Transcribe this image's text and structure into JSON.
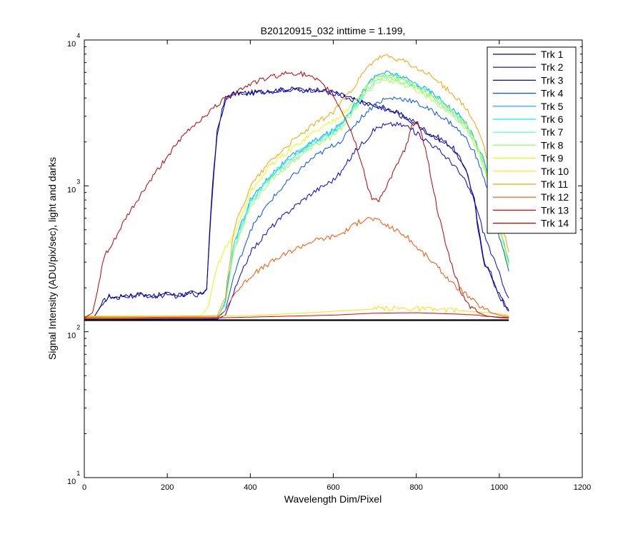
{
  "chart_data": {
    "type": "line",
    "title": "B20120915_032 inttime = 1.199,",
    "xlabel": "Wavelength Dim/Pixel",
    "ylabel": "Signal Intensity (ADU/pix/sec), light and darks",
    "xlim": [
      0,
      1200
    ],
    "ylim": [
      10,
      10000
    ],
    "yscale": "log",
    "grid": false,
    "legend_position": "top-right",
    "x_ticks": [
      "0",
      "200",
      "400",
      "600",
      "800",
      "1000",
      "1200"
    ],
    "y_ticks": [
      {
        "base": "10",
        "exp": "1"
      },
      {
        "base": "10",
        "exp": "2"
      },
      {
        "base": "10",
        "exp": "3"
      },
      {
        "base": "10",
        "exp": "4"
      }
    ],
    "baseline": {
      "x": [
        0,
        1023
      ],
      "y": [
        120,
        120
      ],
      "color": "#000000"
    },
    "series": [
      {
        "name": "Trk 1",
        "color": "#00008F",
        "x": [
          0,
          20,
          30,
          45,
          60,
          80,
          100,
          120,
          140,
          160,
          180,
          200,
          220,
          240,
          260,
          280,
          295,
          305,
          320,
          340,
          360,
          400,
          450,
          500,
          550,
          600,
          620,
          650,
          680,
          700,
          720,
          740,
          760,
          780,
          800,
          830,
          860,
          890,
          920,
          940,
          950,
          965,
          980,
          1000,
          1023
        ],
        "y": [
          120,
          122,
          135,
          160,
          175,
          170,
          180,
          178,
          182,
          176,
          178,
          182,
          178,
          180,
          185,
          180,
          200,
          700,
          2400,
          4000,
          4300,
          4350,
          4500,
          4600,
          4550,
          4400,
          4200,
          3900,
          3700,
          3550,
          3450,
          3300,
          3100,
          2900,
          2700,
          2300,
          2100,
          1800,
          1300,
          800,
          500,
          300,
          250,
          180,
          140
        ]
      },
      {
        "name": "Trk 2",
        "color": "#0000C0",
        "x": [
          0,
          20,
          30,
          45,
          60,
          80,
          100,
          120,
          140,
          160,
          180,
          200,
          220,
          240,
          260,
          280,
          295,
          305,
          320,
          340,
          360,
          400,
          450,
          500,
          550,
          600,
          620,
          650,
          680,
          700,
          720,
          740,
          760,
          780,
          800,
          830,
          860,
          890,
          920,
          940,
          950,
          965,
          980,
          1000,
          1023
        ],
        "y": [
          120,
          122,
          135,
          158,
          172,
          168,
          176,
          175,
          180,
          174,
          176,
          180,
          176,
          178,
          183,
          178,
          198,
          650,
          2300,
          3950,
          4250,
          4300,
          4450,
          4550,
          4500,
          4350,
          4150,
          3850,
          3650,
          3500,
          3400,
          3250,
          3050,
          2850,
          2650,
          2250,
          2050,
          1750,
          1250,
          780,
          480,
          290,
          240,
          175,
          138
        ]
      },
      {
        "name": "Trk 3",
        "color": "#0000F0",
        "x": [
          0,
          320,
          340,
          360,
          400,
          450,
          500,
          550,
          600,
          620,
          650,
          680,
          700,
          720,
          750,
          780,
          800,
          830,
          860,
          890,
          920,
          940,
          960,
          980,
          1000,
          1023
        ],
        "y": [
          121,
          122,
          130,
          185,
          350,
          520,
          700,
          900,
          1100,
          1250,
          1700,
          2100,
          2450,
          2600,
          2650,
          2550,
          2300,
          2000,
          1700,
          1400,
          1050,
          800,
          500,
          350,
          250,
          170
        ]
      },
      {
        "name": "Trk 4",
        "color": "#0050FF",
        "x": [
          0,
          320,
          340,
          360,
          400,
          450,
          500,
          550,
          600,
          620,
          650,
          680,
          700,
          720,
          750,
          780,
          800,
          830,
          860,
          890,
          920,
          940,
          960,
          980,
          1000,
          1023
        ],
        "y": [
          122,
          123,
          140,
          240,
          500,
          800,
          1150,
          1550,
          1900,
          2050,
          2600,
          3200,
          3600,
          3900,
          4000,
          3900,
          3700,
          3350,
          3000,
          2600,
          2100,
          1700,
          1200,
          800,
          450,
          260
        ]
      },
      {
        "name": "Trk 5",
        "color": "#00A0FF",
        "x": [
          0,
          320,
          340,
          360,
          400,
          450,
          500,
          550,
          600,
          620,
          650,
          680,
          700,
          720,
          750,
          780,
          800,
          830,
          860,
          890,
          920,
          940,
          960,
          980,
          1000,
          1023
        ],
        "y": [
          123,
          124,
          160,
          400,
          800,
          1200,
          1600,
          2000,
          2400,
          2700,
          3600,
          4800,
          5600,
          6000,
          5800,
          5300,
          5000,
          4500,
          3900,
          3300,
          2700,
          2100,
          1600,
          1000,
          550,
          300
        ]
      },
      {
        "name": "Trk 6",
        "color": "#00F0FF",
        "x": [
          0,
          320,
          340,
          360,
          400,
          450,
          500,
          550,
          600,
          620,
          650,
          680,
          700,
          720,
          750,
          780,
          800,
          830,
          860,
          890,
          920,
          940,
          960,
          980,
          1000,
          1023
        ],
        "y": [
          123,
          124,
          158,
          390,
          780,
          1180,
          1570,
          1950,
          2350,
          2650,
          3500,
          4700,
          5500,
          5900,
          5700,
          5200,
          4900,
          4400,
          3800,
          3200,
          2650,
          2050,
          1550,
          980,
          540,
          295
        ]
      },
      {
        "name": "Trk 7",
        "color": "#50FFB0",
        "x": [
          0,
          320,
          340,
          360,
          400,
          450,
          500,
          550,
          600,
          620,
          650,
          680,
          700,
          720,
          750,
          780,
          800,
          830,
          860,
          890,
          920,
          940,
          960,
          980,
          1000,
          1023
        ],
        "y": [
          124,
          125,
          155,
          370,
          750,
          1150,
          1500,
          1900,
          2300,
          2600,
          3400,
          4500,
          5200,
          5600,
          5400,
          5000,
          4700,
          4200,
          3650,
          3100,
          2550,
          2000,
          1500,
          950,
          530,
          290
        ]
      },
      {
        "name": "Trk 8",
        "color": "#A0FF60",
        "x": [
          0,
          320,
          340,
          360,
          400,
          450,
          500,
          550,
          600,
          620,
          650,
          680,
          700,
          720,
          750,
          780,
          800,
          830,
          860,
          890,
          920,
          940,
          960,
          980,
          1000,
          1023
        ],
        "y": [
          125,
          126,
          152,
          360,
          720,
          1100,
          1450,
          1850,
          2200,
          2500,
          3300,
          4300,
          5000,
          5300,
          5200,
          4800,
          4500,
          4050,
          3500,
          3000,
          2450,
          1950,
          1450,
          920,
          510,
          280
        ]
      },
      {
        "name": "Trk 9",
        "color": "#E0FF10",
        "x": [
          0,
          100,
          200,
          280,
          300,
          320,
          340,
          360,
          400,
          450,
          500,
          550,
          600,
          620,
          650,
          680,
          700,
          720,
          750,
          780,
          800,
          830,
          860,
          890,
          920,
          940,
          960,
          980,
          1000,
          1023
        ],
        "y": [
          126,
          126,
          126,
          127,
          150,
          280,
          380,
          450,
          900,
          1400,
          1800,
          2300,
          2800,
          3100,
          3700,
          4800,
          5400,
          5700,
          5500,
          5100,
          4800,
          4300,
          3700,
          3200,
          2600,
          2100,
          1500,
          950,
          520,
          285
        ]
      },
      {
        "name": "Trk 10",
        "color": "#FFE000",
        "x": [
          0,
          200,
          400,
          500,
          600,
          700,
          750,
          800,
          900,
          1000,
          1023
        ],
        "y": [
          128,
          128,
          129,
          133,
          138,
          143,
          145,
          144,
          140,
          133,
          130
        ]
      },
      {
        "name": "Trk 11",
        "color": "#FFA000",
        "x": [
          0,
          320,
          340,
          360,
          400,
          450,
          500,
          550,
          600,
          620,
          650,
          680,
          700,
          720,
          750,
          780,
          800,
          830,
          860,
          890,
          920,
          940,
          960,
          980,
          1000,
          1023
        ],
        "y": [
          127,
          128,
          175,
          500,
          1000,
          1500,
          2000,
          2600,
          3200,
          3800,
          4800,
          6300,
          7300,
          7700,
          7500,
          6900,
          6400,
          5800,
          5000,
          4200,
          3400,
          2700,
          2000,
          1200,
          650,
          350
        ]
      },
      {
        "name": "Trk 12",
        "color": "#FF5000",
        "x": [
          0,
          320,
          340,
          360,
          400,
          450,
          500,
          550,
          600,
          620,
          650,
          680,
          700,
          720,
          750,
          780,
          800,
          830,
          860,
          890,
          920,
          940,
          960,
          980,
          1000,
          1023
        ],
        "y": [
          125,
          126,
          140,
          180,
          240,
          300,
          360,
          420,
          450,
          470,
          540,
          600,
          590,
          550,
          500,
          440,
          380,
          320,
          260,
          210,
          180,
          160,
          145,
          135,
          130,
          127
        ]
      },
      {
        "name": "Trk 13",
        "color": "#F00000",
        "x": [
          0,
          100,
          200,
          300,
          600,
          700,
          800,
          900,
          950,
          960,
          1000,
          1023
        ],
        "y": [
          123,
          123,
          124,
          124,
          130,
          134,
          135,
          132,
          130,
          128,
          126,
          125
        ]
      },
      {
        "name": "Trk 14",
        "color": "#C00000",
        "x": [
          0,
          20,
          35,
          45,
          50,
          60,
          100,
          150,
          200,
          250,
          300,
          350,
          400,
          450,
          500,
          530,
          560,
          590,
          610,
          630,
          650,
          670,
          680,
          690,
          700,
          710,
          720,
          740,
          760,
          780,
          790,
          800,
          810,
          830,
          850,
          870,
          890,
          910,
          930,
          950,
          970,
          1000,
          1023
        ],
        "y": [
          124,
          135,
          210,
          300,
          340,
          360,
          600,
          1000,
          1600,
          2400,
          3200,
          4200,
          5000,
          5600,
          6000,
          5800,
          5300,
          4500,
          3700,
          2900,
          2100,
          1400,
          1050,
          850,
          800,
          810,
          900,
          1150,
          1500,
          2000,
          2600,
          2800,
          2500,
          1400,
          700,
          400,
          260,
          180,
          150,
          135,
          128,
          125,
          124
        ]
      }
    ]
  }
}
